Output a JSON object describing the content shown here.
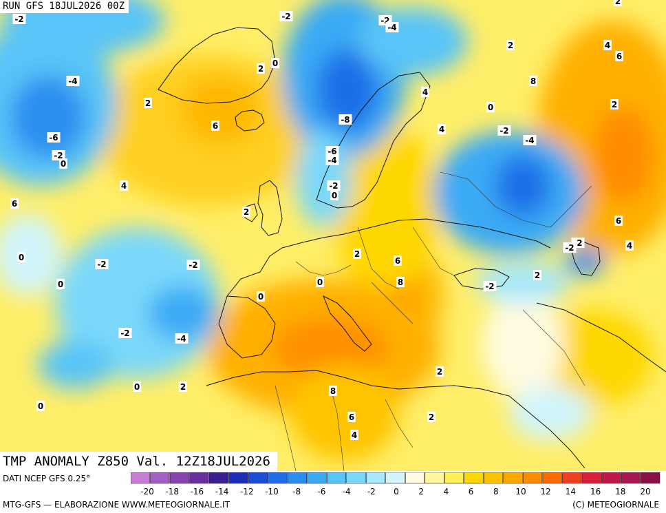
{
  "header": {
    "run": "RUN GFS 18JUL2026 00Z"
  },
  "map": {
    "title": "TMP ANOMALY Z850 Val. 12Z18JUL2026",
    "anomaly_labels": [
      "-2",
      "-2",
      "-2",
      "-4",
      "2",
      "2",
      "0",
      "4",
      "-4",
      "4",
      "6",
      "8",
      "-6",
      "-2",
      "0",
      "2",
      "6",
      "-8",
      "4",
      "-2",
      "-4",
      "-6",
      "-4",
      "2",
      "-2",
      "0",
      "4",
      "6",
      "0",
      "2",
      "-2",
      "-2",
      "0",
      "-2",
      "2",
      "-2",
      "4",
      "2",
      "6",
      "0",
      "0",
      "8",
      "2",
      "0",
      "6",
      "-2",
      "-4",
      "2",
      "-2",
      "0",
      "8",
      "2",
      "6",
      "4",
      "2",
      "0"
    ]
  },
  "legend": {
    "colors": [
      "#c77dd4",
      "#a35fc4",
      "#8a44b2",
      "#6a2d9e",
      "#3a1f8f",
      "#1c2db8",
      "#1c4ed8",
      "#1e6ee8",
      "#2a8ef0",
      "#3aaaf5",
      "#58c4f8",
      "#7ad8fa",
      "#a8e8fb",
      "#d2f5fc",
      "#fffbe0",
      "#fff59c",
      "#ffee55",
      "#ffd700",
      "#ffc200",
      "#ffa800",
      "#ff8c00",
      "#ff6a00",
      "#ef4020",
      "#d8203a",
      "#c01848",
      "#a81850",
      "#8a1048"
    ],
    "ticks": [
      "-20",
      "-18",
      "-16",
      "-14",
      "-12",
      "-10",
      "-8",
      "-6",
      "-4",
      "-2",
      "0",
      "2",
      "4",
      "6",
      "8",
      "10",
      "12",
      "14",
      "16",
      "18",
      "20"
    ]
  },
  "footer": {
    "source": "DATI NCEP GFS 0.25°",
    "credit_left": "MTG-GFS — ELABORAZIONE WWW.METEOGIORNALE.IT",
    "credit_right": "(C) METEOGIORNALE"
  }
}
